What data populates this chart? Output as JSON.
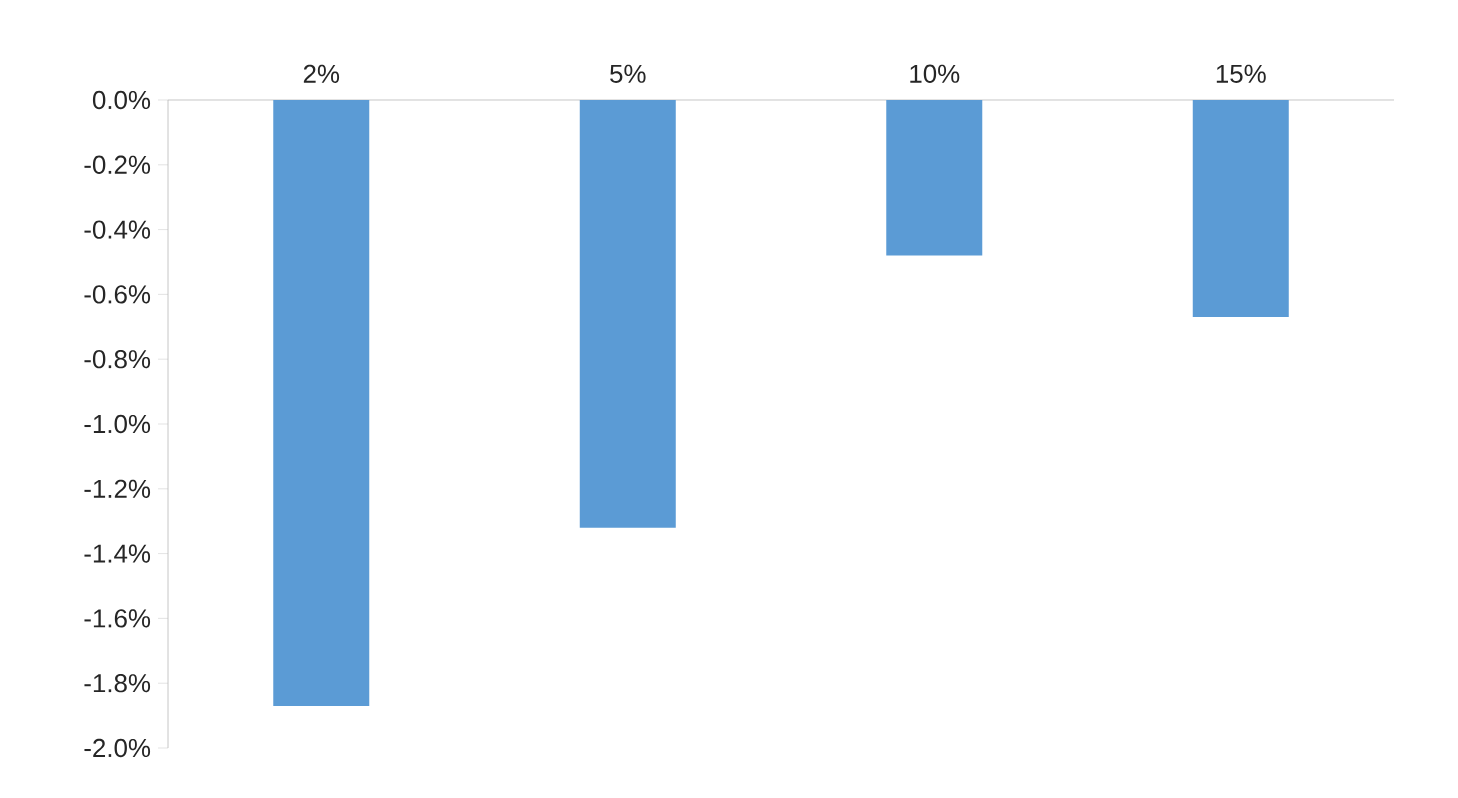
{
  "chart_data": {
    "type": "bar",
    "categories": [
      "2%",
      "5%",
      "10%",
      "15%"
    ],
    "values": [
      -1.87,
      -1.32,
      -0.48,
      -0.67
    ],
    "color": "#5b9bd5",
    "ylim": [
      -2.0,
      0.0
    ],
    "yticks": [
      {
        "value": 0.0,
        "label": "0.0%"
      },
      {
        "value": -0.2,
        "label": "-0.2%"
      },
      {
        "value": -0.4,
        "label": "-0.4%"
      },
      {
        "value": -0.6,
        "label": "-0.6%"
      },
      {
        "value": -0.8,
        "label": "-0.8%"
      },
      {
        "value": -1.0,
        "label": "-1.0%"
      },
      {
        "value": -1.2,
        "label": "-1.2%"
      },
      {
        "value": -1.4,
        "label": "-1.4%"
      },
      {
        "value": -1.6,
        "label": "-1.6%"
      },
      {
        "value": -1.8,
        "label": "-1.8%"
      },
      {
        "value": -2.0,
        "label": "-2.0%"
      }
    ],
    "grid": false
  }
}
